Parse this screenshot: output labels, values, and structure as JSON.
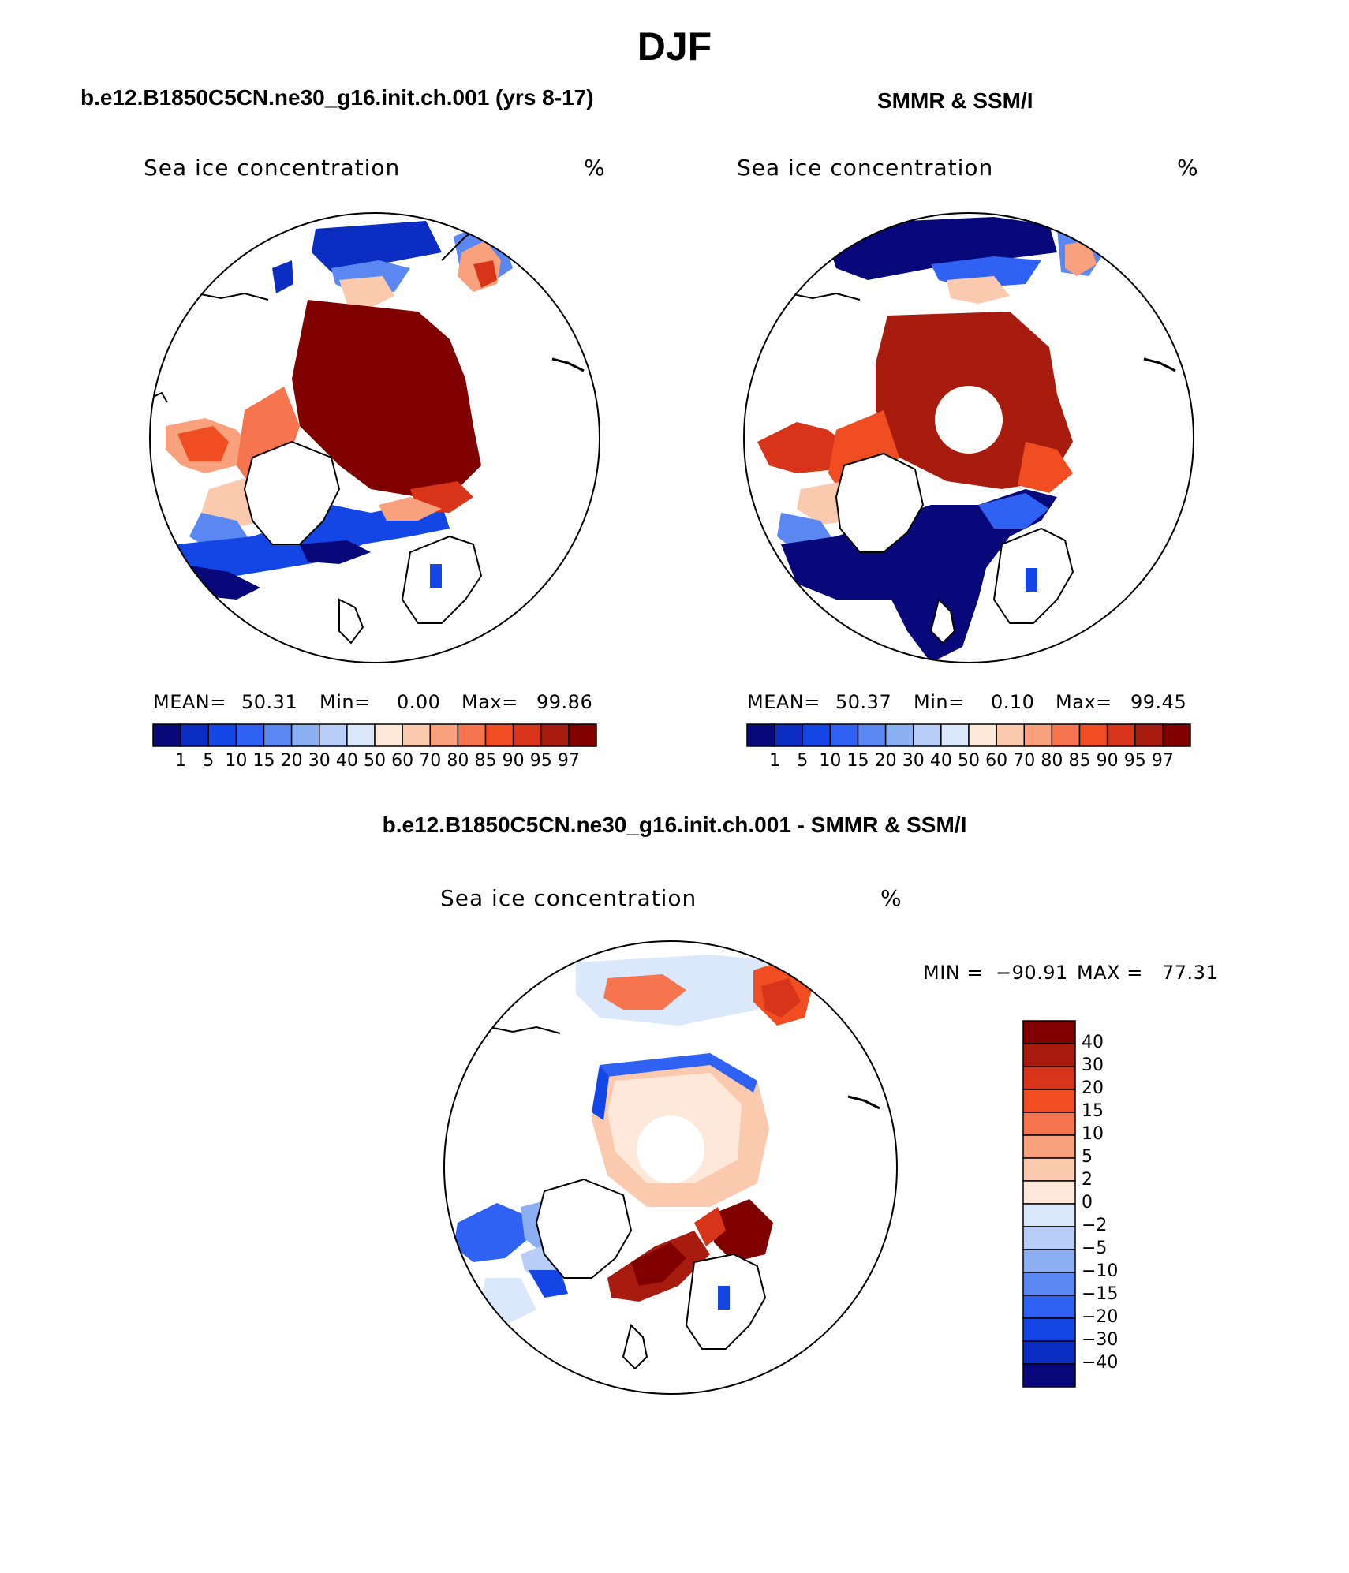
{
  "figure": {
    "season": "DJF",
    "model_title": "b.e12.B1850C5CN.ne30_g16.init.ch.001 (yrs 8-17)",
    "obs_title": "SMMR & SSM/I",
    "diff_title": "b.e12.B1850C5CN.ne30_g16.init.ch.001 - SMMR & SSM/I"
  },
  "panels": {
    "model": {
      "variable": "Sea ice concentration",
      "units": "%",
      "mean_label": "MEAN=",
      "mean": "50.31",
      "min_label": "Min=",
      "min": "0.00",
      "max_label": "Max=",
      "max": "99.86"
    },
    "obs": {
      "variable": "Sea ice concentration",
      "units": "%",
      "mean_label": "MEAN=",
      "mean": "50.37",
      "min_label": "Min=",
      "min": "0.10",
      "max_label": "Max=",
      "max": "99.45"
    },
    "diff": {
      "variable": "Sea ice concentration",
      "units": "%",
      "min_label": "MIN =",
      "min": "−90.91",
      "max_label": "MAX =",
      "max": "77.31"
    }
  },
  "colorbars": {
    "concentration": {
      "colors": [
        "#08087a",
        "#0b2dc2",
        "#1446e6",
        "#2f62f2",
        "#5b87f2",
        "#8caef2",
        "#b8cdf7",
        "#dbe8fb",
        "#fde8da",
        "#fbc9ad",
        "#f8a17c",
        "#f6754f",
        "#f04e22",
        "#d8341a",
        "#a81c0f",
        "#800000"
      ],
      "labels": [
        "1",
        "5",
        "10",
        "15",
        "20",
        "30",
        "40",
        "50",
        "60",
        "70",
        "80",
        "85",
        "90",
        "95",
        "97"
      ]
    },
    "difference": {
      "colors": [
        "#800000",
        "#a81c0f",
        "#d8341a",
        "#f04e22",
        "#f6754f",
        "#f8a17c",
        "#fbc9ad",
        "#fde8da",
        "#dbe8fb",
        "#b8cdf7",
        "#8caef2",
        "#5b87f2",
        "#2f62f2",
        "#1446e6",
        "#0b2dc2",
        "#08087a"
      ],
      "labels": [
        "40",
        "30",
        "20",
        "15",
        "10",
        "5",
        "2",
        "0",
        "−2",
        "−5",
        "−10",
        "−15",
        "−20",
        "−30",
        "−40"
      ]
    }
  }
}
